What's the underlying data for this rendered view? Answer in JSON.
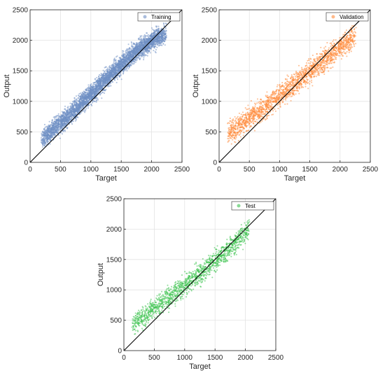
{
  "chart_data": [
    {
      "id": "training",
      "type": "scatter",
      "xlabel": "Target",
      "ylabel": "Output",
      "xlim": [
        0,
        2500
      ],
      "ylim": [
        0,
        2500
      ],
      "xticks": [
        0,
        500,
        1000,
        1500,
        2000,
        2500
      ],
      "yticks": [
        0,
        500,
        1000,
        1500,
        2000,
        2500
      ],
      "grid": true,
      "legend_position": "top-right",
      "reference_line": [
        [
          0,
          0
        ],
        [
          2500,
          2500
        ]
      ],
      "series": [
        {
          "name": "Training",
          "color": "#6f8fc4",
          "x": [
            200,
            280,
            350,
            420,
            500,
            560,
            620,
            700,
            760,
            820,
            880,
            940,
            1000,
            1060,
            1120,
            1180,
            1240,
            1300,
            1360,
            1420,
            1480,
            1540,
            1600,
            1660,
            1720,
            1780,
            1840,
            1900,
            1960,
            2020,
            2080,
            2150,
            2230
          ],
          "y": [
            390,
            450,
            520,
            580,
            640,
            690,
            760,
            830,
            880,
            950,
            1000,
            1050,
            1120,
            1170,
            1240,
            1300,
            1350,
            1410,
            1470,
            1530,
            1580,
            1640,
            1690,
            1750,
            1800,
            1850,
            1890,
            1930,
            1960,
            2000,
            2040,
            2070,
            2090
          ],
          "spread": 110,
          "points_per_step": 150
        }
      ]
    },
    {
      "id": "validation",
      "type": "scatter",
      "xlabel": "Target",
      "ylabel": "Output",
      "xlim": [
        0,
        2500
      ],
      "ylim": [
        0,
        2500
      ],
      "xticks": [
        0,
        500,
        1000,
        1500,
        2000,
        2500
      ],
      "yticks": [
        0,
        500,
        1000,
        1500,
        2000,
        2500
      ],
      "grid": true,
      "legend_position": "top-right",
      "reference_line": [
        [
          0,
          0
        ],
        [
          2500,
          2500
        ]
      ],
      "series": [
        {
          "name": "Validation",
          "color": "#ff8a3a",
          "x": [
            150,
            250,
            350,
            450,
            550,
            650,
            750,
            850,
            950,
            1050,
            1150,
            1250,
            1350,
            1450,
            1550,
            1650,
            1750,
            1850,
            1950,
            2050,
            2150,
            2250
          ],
          "y": [
            480,
            520,
            600,
            680,
            760,
            830,
            900,
            980,
            1050,
            1130,
            1200,
            1280,
            1360,
            1440,
            1510,
            1590,
            1680,
            1760,
            1840,
            1920,
            2000,
            2100
          ],
          "spread": 130,
          "points_per_step": 95
        }
      ]
    },
    {
      "id": "test",
      "type": "scatter",
      "xlabel": "Target",
      "ylabel": "Output",
      "xlim": [
        0,
        2500
      ],
      "ylim": [
        0,
        2500
      ],
      "xticks": [
        0,
        500,
        1000,
        1500,
        2000,
        2500
      ],
      "yticks": [
        0,
        500,
        1000,
        1500,
        2000,
        2500
      ],
      "grid": true,
      "legend_position": "top-right",
      "reference_line": [
        [
          0,
          0
        ],
        [
          2500,
          2500
        ]
      ],
      "series": [
        {
          "name": "Test",
          "color": "#3cc24f",
          "x": [
            150,
            250,
            350,
            450,
            550,
            650,
            750,
            850,
            950,
            1050,
            1150,
            1250,
            1350,
            1450,
            1550,
            1650,
            1750,
            1850,
            1950,
            2050
          ],
          "y": [
            430,
            500,
            580,
            660,
            740,
            810,
            880,
            960,
            1040,
            1120,
            1190,
            1270,
            1350,
            1430,
            1510,
            1600,
            1690,
            1790,
            1880,
            1980
          ],
          "spread": 120,
          "points_per_step": 75
        }
      ]
    }
  ]
}
